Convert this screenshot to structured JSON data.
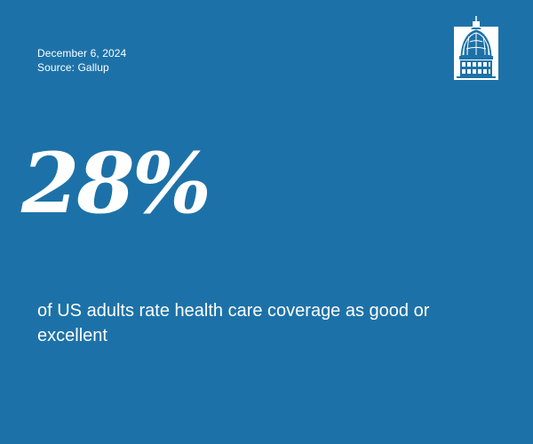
{
  "header": {
    "date": "December 6, 2024",
    "source": "Source: Gallup"
  },
  "logo": {
    "icon": "capitol-dome-icon"
  },
  "stat": {
    "value": "28%",
    "description": "of US adults rate health care coverage as good or excellent"
  },
  "colors": {
    "background": "#1c72a8",
    "text": "#ffffff"
  }
}
